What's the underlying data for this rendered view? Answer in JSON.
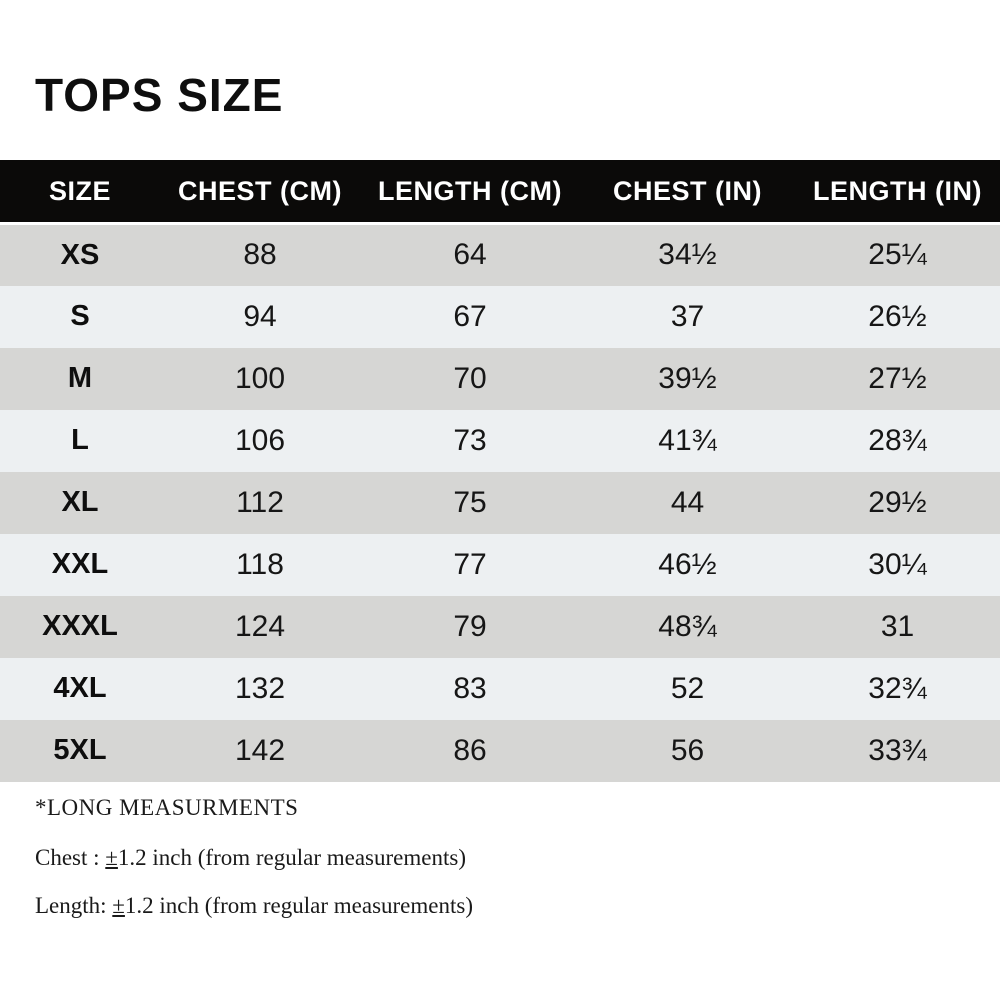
{
  "title": "TOPS SIZE",
  "chart_data": {
    "type": "table",
    "title": "TOPS SIZE",
    "columns": [
      "SIZE",
      "CHEST (CM)",
      "LENGTH (CM)",
      "CHEST (IN)",
      "LENGTH (IN)"
    ],
    "rows": [
      [
        "XS",
        "88",
        "64",
        "34½",
        "25¼"
      ],
      [
        "S",
        "94",
        "67",
        "37",
        "26½"
      ],
      [
        "M",
        "100",
        "70",
        "39½",
        "27½"
      ],
      [
        "L",
        "106",
        "73",
        "41¾",
        "28¾"
      ],
      [
        "XL",
        "112",
        "75",
        "44",
        "29½"
      ],
      [
        "XXL",
        "118",
        "77",
        "46½",
        "30¼"
      ],
      [
        "XXXL",
        "124",
        "79",
        "48¾",
        "31"
      ],
      [
        "4XL",
        "132",
        "83",
        "52",
        "32¾"
      ],
      [
        "5XL",
        "142",
        "86",
        "56",
        "33¾"
      ]
    ]
  },
  "footer": {
    "note": "*LONG MEASURMENTS",
    "lines": [
      {
        "label": "Chest : ",
        "symbol": "±",
        "text": "1.2 inch (from regular measurements)"
      },
      {
        "label": "Length: ",
        "symbol": "±",
        "text": "1.2 inch (from regular measurements)"
      }
    ]
  },
  "colors": {
    "header_bg": "#0b0a09",
    "header_text": "#ffffff",
    "row_dark": "#d6d6d4",
    "row_light": "#edf0f2",
    "text": "#111111",
    "background": "#ffffff"
  }
}
